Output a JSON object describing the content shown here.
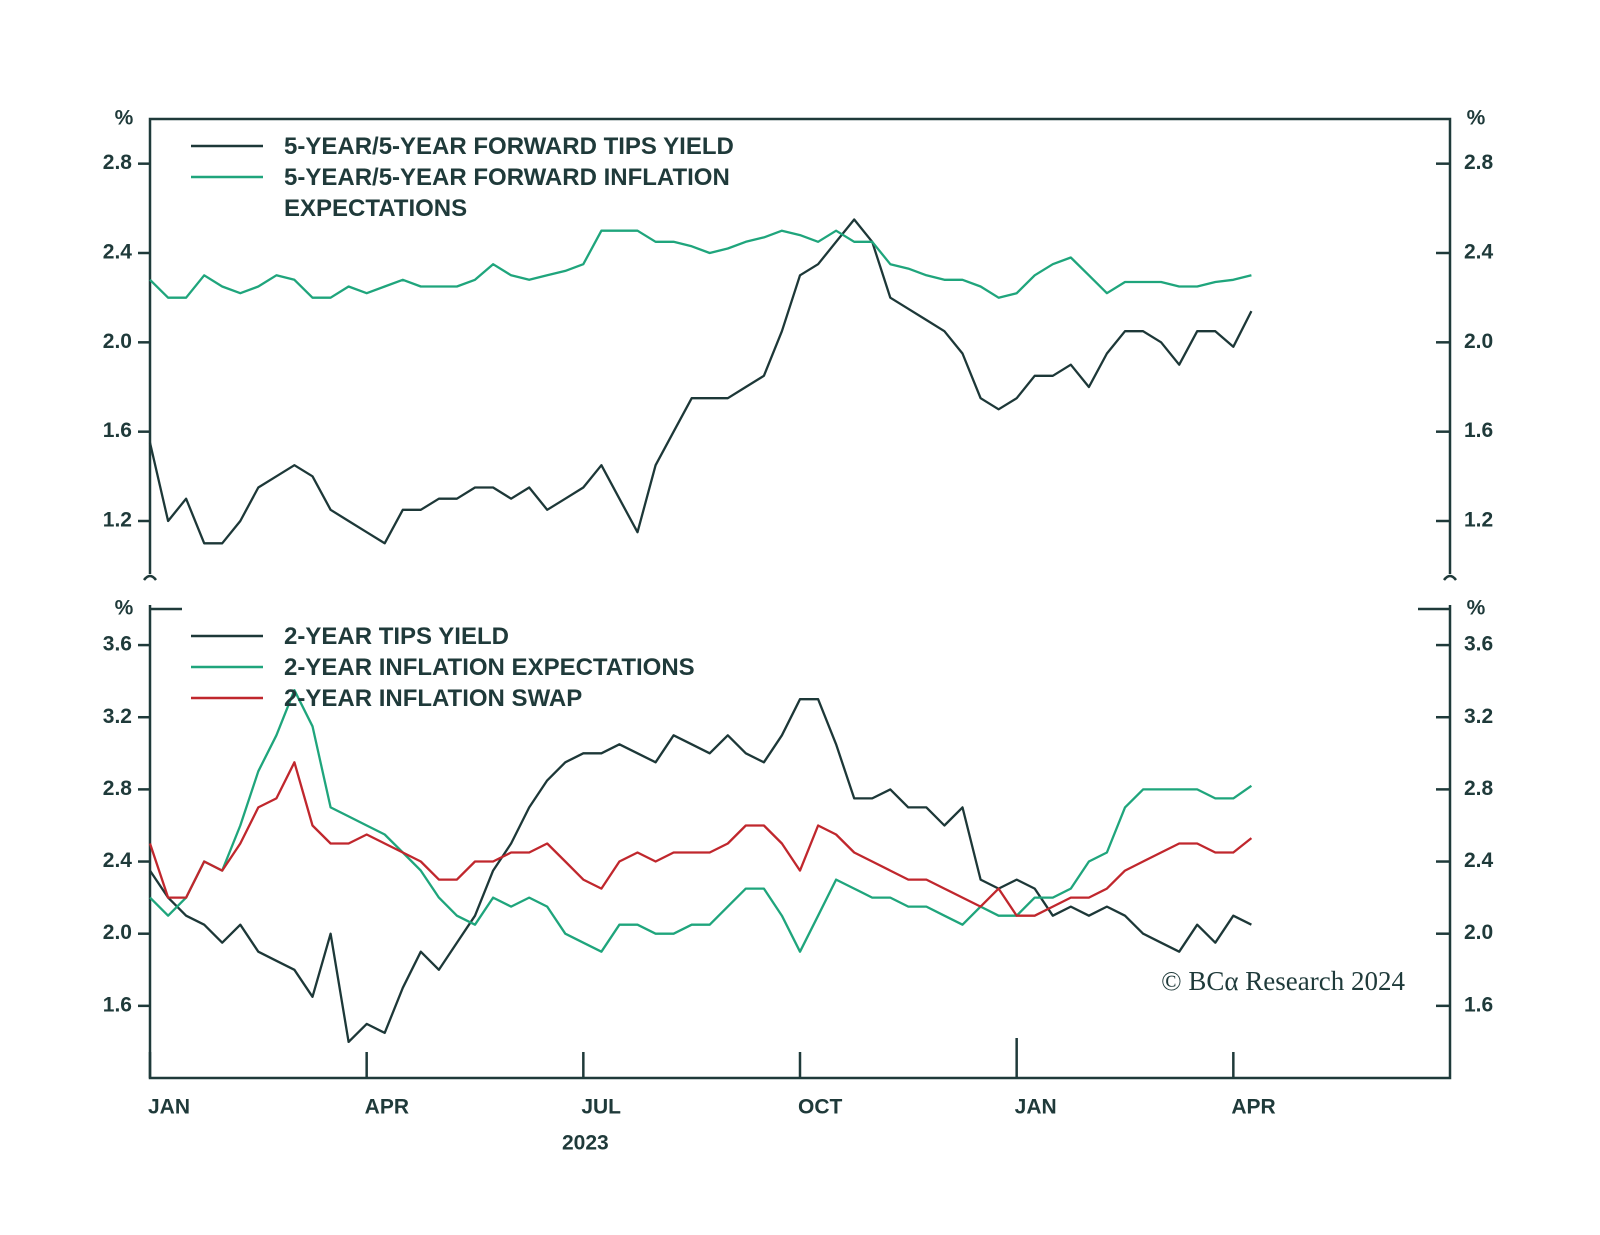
{
  "chart_data": [
    {
      "type": "line",
      "y_unit": "%",
      "x": [
        0,
        0.25,
        0.5,
        0.75,
        1,
        1.25,
        1.5,
        1.75,
        2,
        2.25,
        2.5,
        2.75,
        3,
        3.25,
        3.5,
        3.75,
        4,
        4.25,
        4.5,
        4.75,
        5,
        5.25,
        5.5,
        5.75,
        6,
        6.25,
        6.5,
        6.75,
        7,
        7.25,
        7.5,
        7.75,
        8,
        8.25,
        8.5,
        8.75,
        9,
        9.25,
        9.5,
        9.75,
        10,
        10.25,
        10.5,
        10.75,
        11,
        11.25,
        11.5,
        11.75,
        12,
        12.25,
        12.5,
        12.75,
        13,
        13.25,
        13.5,
        13.75,
        14,
        14.25,
        14.5,
        14.75,
        15,
        15.25
      ],
      "xlim": [
        0,
        18
      ],
      "ylim": [
        0.9,
        3.0
      ],
      "yticks": [
        1.2,
        1.6,
        {
          "value": 2,
          "label": "2.0"
        },
        2.4,
        2.8
      ],
      "series": [
        {
          "name": "5-YEAR/5-YEAR FORWARD TIPS YIELD",
          "color": "#1d3838",
          "values": [
            1.55,
            1.2,
            1.3,
            1.1,
            1.1,
            1.2,
            1.35,
            1.4,
            1.45,
            1.4,
            1.25,
            1.2,
            1.15,
            1.1,
            1.25,
            1.25,
            1.3,
            1.3,
            1.35,
            1.35,
            1.3,
            1.35,
            1.25,
            1.3,
            1.35,
            1.45,
            1.3,
            1.15,
            1.45,
            1.6,
            1.75,
            1.75,
            1.75,
            1.8,
            1.85,
            2.05,
            2.3,
            2.35,
            2.45,
            2.55,
            2.45,
            2.2,
            2.15,
            2.1,
            2.05,
            1.95,
            1.75,
            1.7,
            1.75,
            1.85,
            1.85,
            1.9,
            1.8,
            1.95,
            2.05,
            2.05,
            2.0,
            1.9,
            2.05,
            2.05,
            1.98,
            2.14
          ]
        },
        {
          "name": "5-YEAR/5-YEAR FORWARD INFLATION EXPECTATIONS",
          "color": "#1fa57c",
          "values": [
            2.28,
            2.2,
            2.2,
            2.3,
            2.25,
            2.22,
            2.25,
            2.3,
            2.28,
            2.2,
            2.2,
            2.25,
            2.22,
            2.25,
            2.28,
            2.25,
            2.25,
            2.25,
            2.28,
            2.35,
            2.3,
            2.28,
            2.3,
            2.32,
            2.35,
            2.5,
            2.5,
            2.5,
            2.45,
            2.45,
            2.43,
            2.4,
            2.42,
            2.45,
            2.47,
            2.5,
            2.48,
            2.45,
            2.5,
            2.45,
            2.45,
            2.35,
            2.33,
            2.3,
            2.28,
            2.28,
            2.25,
            2.2,
            2.22,
            2.3,
            2.35,
            2.38,
            2.3,
            2.22,
            2.27,
            2.27,
            2.27,
            2.25,
            2.25,
            2.27,
            2.28,
            2.3
          ]
        }
      ]
    },
    {
      "type": "line",
      "y_unit": "%",
      "x": [
        0,
        0.25,
        0.5,
        0.75,
        1,
        1.25,
        1.5,
        1.75,
        2,
        2.25,
        2.5,
        2.75,
        3,
        3.25,
        3.5,
        3.75,
        4,
        4.25,
        4.5,
        4.75,
        5,
        5.25,
        5.5,
        5.75,
        6,
        6.25,
        6.5,
        6.75,
        7,
        7.25,
        7.5,
        7.75,
        8,
        8.25,
        8.5,
        8.75,
        9,
        9.25,
        9.5,
        9.75,
        10,
        10.25,
        10.5,
        10.75,
        11,
        11.25,
        11.5,
        11.75,
        12,
        12.25,
        12.5,
        12.75,
        13,
        13.25,
        13.5,
        13.75,
        14,
        14.25,
        14.5,
        14.75,
        15,
        15.25
      ],
      "xlim": [
        0,
        18
      ],
      "xticks": [
        {
          "value": 0,
          "label": "JAN"
        },
        {
          "value": 3,
          "label": "APR"
        },
        {
          "value": 6,
          "label": "JUL"
        },
        {
          "value": 9,
          "label": "OCT"
        },
        {
          "value": 12,
          "label": "JAN"
        },
        {
          "value": 15,
          "label": "APR"
        }
      ],
      "x_label": "2023",
      "ylim": [
        1.2,
        3.8
      ],
      "yticks": [
        1.6,
        {
          "value": 2,
          "label": "2.0"
        },
        2.4,
        2.8,
        3.2,
        3.6
      ],
      "annotation": "© BCα Research 2024",
      "series": [
        {
          "name": "2-YEAR TIPS YIELD",
          "color": "#1d3838",
          "values": [
            2.35,
            2.2,
            2.1,
            2.05,
            1.95,
            2.05,
            1.9,
            1.85,
            1.8,
            1.65,
            2.0,
            1.4,
            1.5,
            1.45,
            1.7,
            1.9,
            1.8,
            1.95,
            2.1,
            2.35,
            2.5,
            2.7,
            2.85,
            2.95,
            3.0,
            3.0,
            3.05,
            3.0,
            2.95,
            3.1,
            3.05,
            3.0,
            3.1,
            3.0,
            2.95,
            3.1,
            3.3,
            3.3,
            3.05,
            2.75,
            2.75,
            2.8,
            2.7,
            2.7,
            2.6,
            2.7,
            2.3,
            2.25,
            2.3,
            2.25,
            2.1,
            2.15,
            2.1,
            2.15,
            2.1,
            2.0,
            1.95,
            1.9,
            2.05,
            1.95,
            2.1,
            2.05
          ]
        },
        {
          "name": "2-YEAR INFLATION EXPECTATIONS",
          "color": "#1fa57c",
          "values": [
            2.2,
            2.1,
            2.2,
            2.4,
            2.35,
            2.6,
            2.9,
            3.1,
            3.35,
            3.15,
            2.7,
            2.65,
            2.6,
            2.55,
            2.45,
            2.35,
            2.2,
            2.1,
            2.05,
            2.2,
            2.15,
            2.2,
            2.15,
            2.0,
            1.95,
            1.9,
            2.05,
            2.05,
            2.0,
            2.0,
            2.05,
            2.05,
            2.15,
            2.25,
            2.25,
            2.1,
            1.9,
            2.1,
            2.3,
            2.25,
            2.2,
            2.2,
            2.15,
            2.15,
            2.1,
            2.05,
            2.15,
            2.1,
            2.1,
            2.2,
            2.2,
            2.25,
            2.4,
            2.45,
            2.7,
            2.8,
            2.8,
            2.8,
            2.8,
            2.75,
            2.75,
            2.82
          ]
        },
        {
          "name": "2-YEAR INFLATION SWAP",
          "color": "#c0272d",
          "values": [
            2.5,
            2.2,
            2.2,
            2.4,
            2.35,
            2.5,
            2.7,
            2.75,
            2.95,
            2.6,
            2.5,
            2.5,
            2.55,
            2.5,
            2.45,
            2.4,
            2.3,
            2.3,
            2.4,
            2.4,
            2.45,
            2.45,
            2.5,
            2.4,
            2.3,
            2.25,
            2.4,
            2.45,
            2.4,
            2.45,
            2.45,
            2.45,
            2.5,
            2.6,
            2.6,
            2.5,
            2.35,
            2.6,
            2.55,
            2.45,
            2.4,
            2.35,
            2.3,
            2.3,
            2.25,
            2.2,
            2.15,
            2.25,
            2.1,
            2.1,
            2.15,
            2.2,
            2.2,
            2.25,
            2.35,
            2.4,
            2.45,
            2.5,
            2.5,
            2.45,
            2.45,
            2.53
          ]
        }
      ]
    }
  ]
}
